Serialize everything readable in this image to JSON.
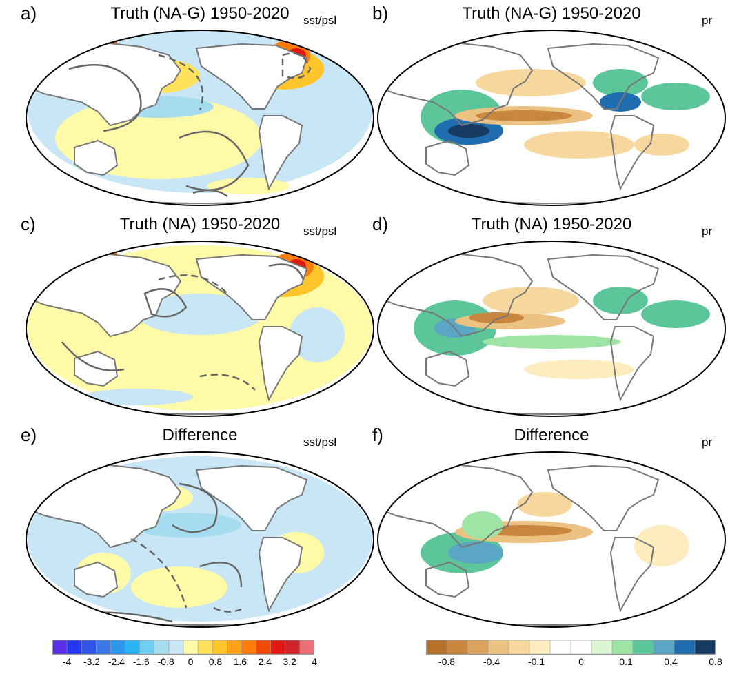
{
  "panels": [
    {
      "label": "a)",
      "title": "Truth (NA-G) 1950-2020",
      "var": "sst/psl",
      "kind": "sst",
      "variant": "a"
    },
    {
      "label": "b)",
      "title": "Truth (NA-G) 1950-2020",
      "var": "pr",
      "kind": "pr",
      "variant": "b"
    },
    {
      "label": "c)",
      "title": "Truth (NA) 1950-2020",
      "var": "sst/psl",
      "kind": "sst",
      "variant": "c"
    },
    {
      "label": "d)",
      "title": "Truth (NA) 1950-2020",
      "var": "pr",
      "kind": "pr",
      "variant": "d"
    },
    {
      "label": "e)",
      "title": "Difference",
      "var": "sst/psl",
      "kind": "sst",
      "variant": "e"
    },
    {
      "label": "f)",
      "title": "Difference",
      "var": "pr",
      "kind": "pr",
      "variant": "f"
    }
  ],
  "colorbars": {
    "sst": {
      "colors": [
        "#5a2ee6",
        "#2336f0",
        "#2f55e8",
        "#3a78e6",
        "#2f96ee",
        "#29b4f2",
        "#6fd0f4",
        "#a6dcf0",
        "#c8e6f5",
        "#fffaa8",
        "#ffe25a",
        "#ffc52a",
        "#ffa21a",
        "#ff7c0a",
        "#f04a0a",
        "#e01a12",
        "#d0242a",
        "#ec6f77"
      ],
      "tick_labels": [
        "-4",
        "-3.2",
        "-2.4",
        "-1.6",
        "-0.8",
        "0",
        "0.8",
        "1.6",
        "2.4",
        "3.2",
        "4"
      ]
    },
    "pr": {
      "colors": [
        "#b8712a",
        "#c8863e",
        "#dca35e",
        "#ecc282",
        "#f6d89e",
        "#fcecbe",
        "#ffffff",
        "#ffffff",
        "#d9f5d2",
        "#9ee4a4",
        "#5cc59a",
        "#5aa6c4",
        "#1f6cae",
        "#173a63"
      ],
      "tick_labels": [
        "-0.8",
        "-0.4",
        "-0.1",
        "0",
        "0.1",
        "0.4",
        "0.8"
      ]
    }
  }
}
